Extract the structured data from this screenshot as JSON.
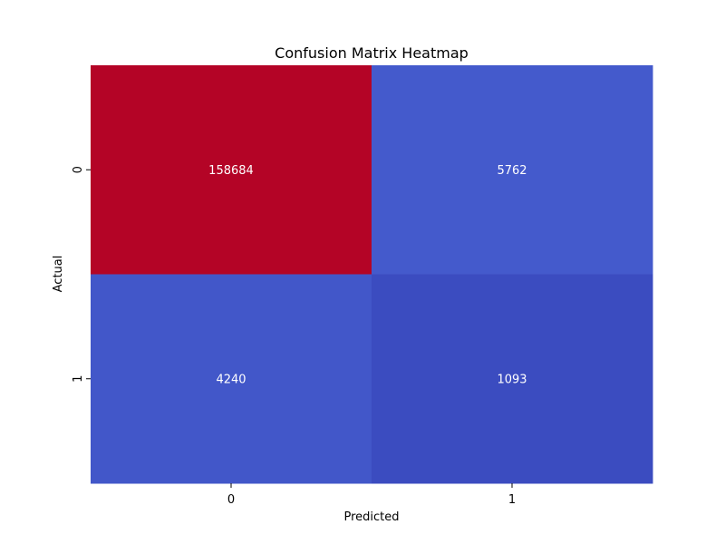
{
  "chart_data": {
    "type": "heatmap",
    "title": "Confusion Matrix Heatmap",
    "xlabel": "Predicted",
    "ylabel": "Actual",
    "x_categories": [
      "0",
      "1"
    ],
    "y_categories": [
      "0",
      "1"
    ],
    "values": [
      [
        158684,
        5762
      ],
      [
        4240,
        1093
      ]
    ],
    "colormap": "coolwarm",
    "colorbar": false,
    "cell_colors": [
      [
        "#b40426",
        "#445acc"
      ],
      [
        "#4257c9",
        "#3b4cc0"
      ]
    ]
  }
}
